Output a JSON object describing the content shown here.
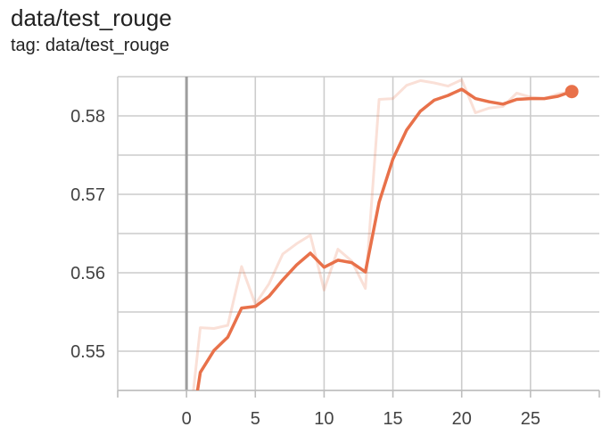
{
  "title": "data/test_rouge",
  "subtitle": "tag: data/test_rouge",
  "chart_data": {
    "type": "line",
    "title": "data/test_rouge",
    "xlabel": "",
    "ylabel": "",
    "xlim": [
      -5,
      30
    ],
    "ylim": [
      0.545,
      0.585
    ],
    "x_ticks": [
      0,
      5,
      10,
      15,
      20,
      25
    ],
    "y_ticks": [
      0.55,
      0.56,
      0.57,
      0.58
    ],
    "x_tick_labels": [
      "0",
      "5",
      "10",
      "15",
      "20",
      "25"
    ],
    "y_tick_labels": [
      "0.55",
      "0.56",
      "0.57",
      "0.58"
    ],
    "grid": true,
    "colors": {
      "smoothed": "#e8714a",
      "raw": "#e8714a",
      "grid": "#cccccc",
      "axis": "#9e9e9e"
    },
    "series": [
      {
        "role": "raw",
        "x": [
          0.5,
          1,
          2,
          3,
          4,
          5,
          6,
          7,
          8,
          9,
          10,
          11,
          12,
          13,
          14,
          15,
          16,
          17,
          18,
          19,
          20,
          21,
          22,
          23,
          24,
          25,
          26,
          27,
          28
        ],
        "values": [
          0.545,
          0.553,
          0.5529,
          0.5533,
          0.5608,
          0.556,
          0.5586,
          0.5624,
          0.5637,
          0.5648,
          0.5578,
          0.563,
          0.5615,
          0.558,
          0.5821,
          0.5822,
          0.5839,
          0.5845,
          0.5842,
          0.5838,
          0.5846,
          0.5804,
          0.581,
          0.5812,
          0.5829,
          0.5824,
          0.5822,
          0.5828,
          0.5831
        ]
      },
      {
        "role": "smoothed",
        "x": [
          0.8,
          1,
          2,
          3,
          4,
          5,
          6,
          7,
          8,
          9,
          10,
          11,
          12,
          13,
          14,
          15,
          16,
          17,
          18,
          19,
          20,
          21,
          22,
          23,
          24,
          25,
          26,
          27,
          28
        ],
        "values": [
          0.545,
          0.5473,
          0.5501,
          0.5518,
          0.5555,
          0.5557,
          0.557,
          0.5591,
          0.561,
          0.5625,
          0.5607,
          0.5616,
          0.5613,
          0.5601,
          0.569,
          0.5745,
          0.5782,
          0.5806,
          0.582,
          0.5826,
          0.5834,
          0.5822,
          0.5818,
          0.5815,
          0.5821,
          0.5822,
          0.5822,
          0.5825,
          0.5831
        ]
      }
    ],
    "last_point": {
      "x": 28,
      "y": 0.5831
    }
  }
}
